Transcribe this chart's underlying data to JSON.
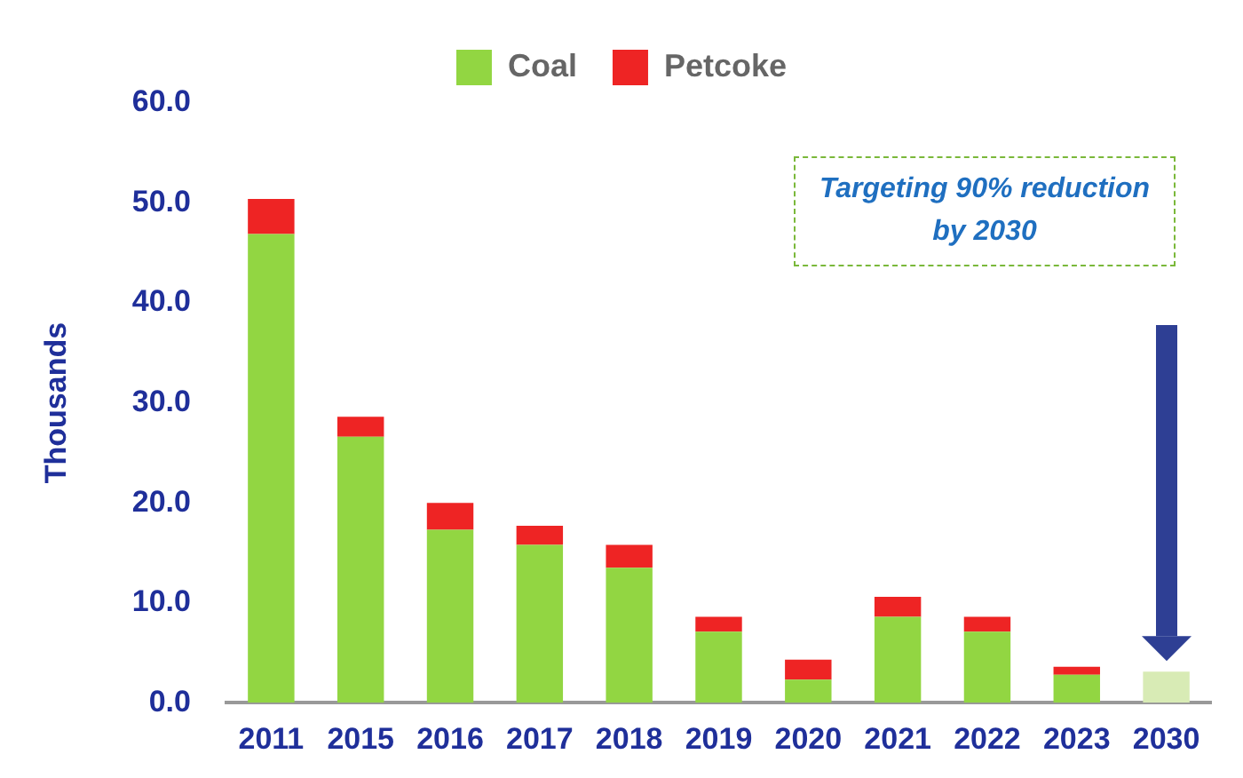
{
  "chart_data": {
    "type": "bar",
    "stacked": true,
    "ylabel": "Thousands",
    "categories": [
      "2011",
      "2015",
      "2016",
      "2017",
      "2018",
      "2019",
      "2020",
      "2021",
      "2022",
      "2023",
      "2030"
    ],
    "series": [
      {
        "name": "Coal",
        "color": "#92d642",
        "colors": [
          "#92d642",
          "#92d642",
          "#92d642",
          "#92d642",
          "#92d642",
          "#92d642",
          "#92d642",
          "#92d642",
          "#92d642",
          "#92d642",
          "#d8ebb5"
        ],
        "values": [
          46.9,
          26.6,
          17.3,
          15.8,
          13.5,
          7.1,
          2.3,
          8.6,
          7.1,
          2.8,
          3.1
        ]
      },
      {
        "name": "Petcoke",
        "color": "#ee2424",
        "values": [
          3.5,
          2.0,
          2.7,
          1.9,
          2.3,
          1.5,
          2.0,
          2.0,
          1.5,
          0.8,
          null
        ]
      }
    ],
    "ylim": [
      0,
      60
    ],
    "yticks": [
      {
        "value": 0,
        "label": "0.0"
      },
      {
        "value": 10,
        "label": "10.0"
      },
      {
        "value": 20,
        "label": "20.0"
      },
      {
        "value": 30,
        "label": "30.0"
      },
      {
        "value": 40,
        "label": "40.0"
      },
      {
        "value": 50,
        "label": "50.0"
      },
      {
        "value": 60,
        "label": "60.0"
      }
    ],
    "grid": false,
    "legend": "top",
    "annotations": [
      "Targeting 90% reduction by 2030"
    ]
  }
}
